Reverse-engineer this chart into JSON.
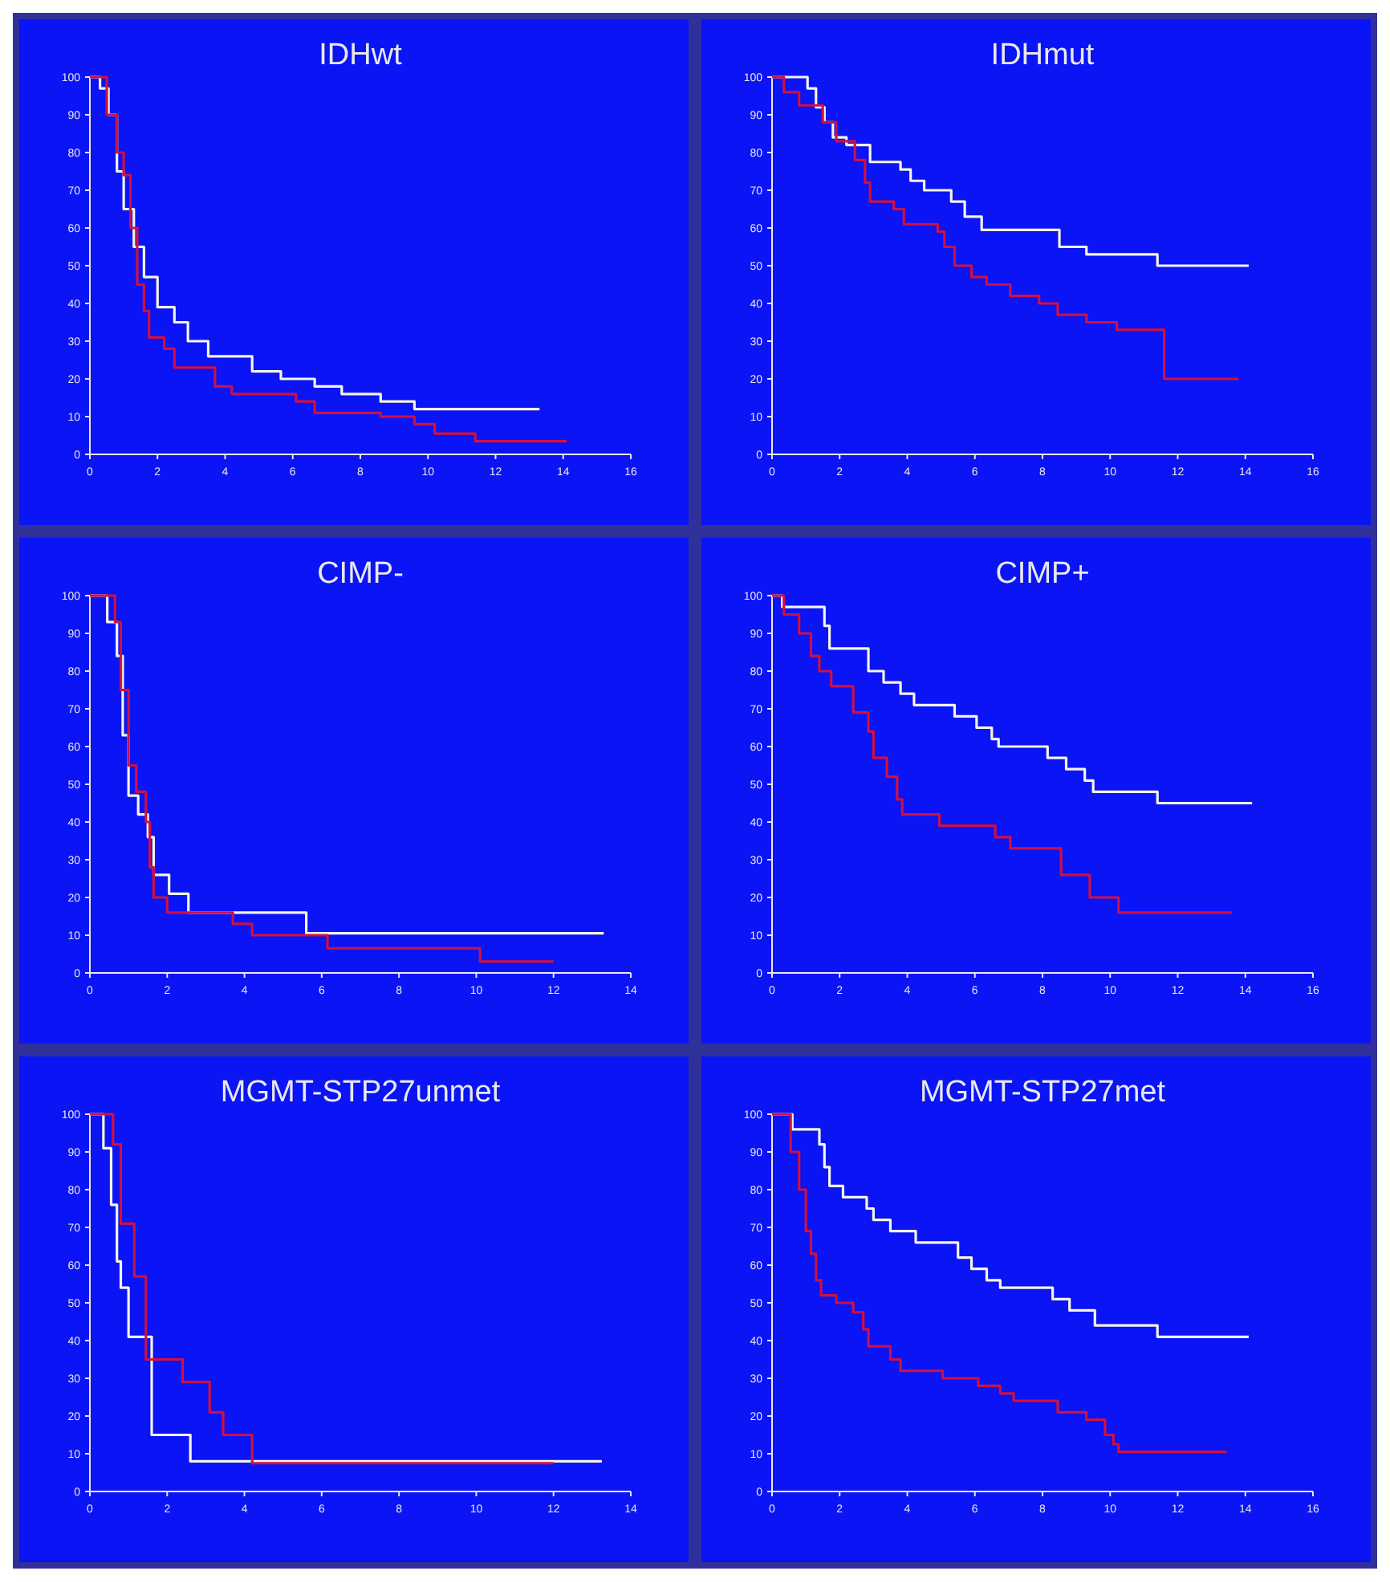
{
  "chart_data": [
    {
      "type": "step",
      "title": "IDHwt",
      "xlim": [
        0,
        16
      ],
      "xticks": [
        0,
        2,
        4,
        6,
        8,
        10,
        12,
        14,
        16
      ],
      "ylim": [
        0,
        100
      ],
      "yticks": [
        0,
        10,
        20,
        30,
        40,
        50,
        60,
        70,
        80,
        90,
        100
      ],
      "series": [
        {
          "color": "#f4f4e8",
          "x": [
            0,
            0.3,
            0.55,
            0.8,
            1.0,
            1.3,
            1.6,
            2.0,
            2.5,
            2.9,
            3.5,
            4.8,
            5.65,
            6.65,
            7.45,
            8.6,
            9.6,
            13.3
          ],
          "values": [
            100,
            97,
            90,
            75,
            65,
            55,
            47,
            39,
            35,
            30,
            26,
            22,
            20,
            18,
            16,
            14,
            12,
            12
          ]
        },
        {
          "color": "#d01040",
          "x": [
            0,
            0.5,
            0.8,
            1.0,
            1.2,
            1.4,
            1.6,
            1.75,
            2.2,
            2.5,
            3.7,
            4.2,
            6.1,
            6.65,
            8.6,
            9.6,
            10.2,
            11.4,
            14.1
          ],
          "values": [
            100,
            90,
            80,
            74,
            60,
            45,
            38,
            31,
            28,
            23,
            18,
            16,
            14,
            11,
            10,
            8,
            5.5,
            3.5,
            3.5
          ]
        }
      ]
    },
    {
      "type": "step",
      "title": "IDHmut",
      "xlim": [
        0,
        16
      ],
      "xticks": [
        0,
        2,
        4,
        6,
        8,
        10,
        12,
        14,
        16
      ],
      "ylim": [
        0,
        100
      ],
      "yticks": [
        0,
        10,
        20,
        30,
        40,
        50,
        60,
        70,
        80,
        90,
        100
      ],
      "series": [
        {
          "color": "#f4f4e8",
          "x": [
            0,
            1.05,
            1.3,
            1.55,
            1.8,
            2.2,
            2.9,
            3.8,
            4.1,
            4.5,
            5.3,
            5.7,
            6.2,
            8.5,
            9.3,
            11.4,
            14.1
          ],
          "values": [
            100,
            97,
            92,
            88,
            84,
            82,
            77.5,
            75.5,
            72.5,
            70,
            67,
            63,
            59.5,
            55,
            53,
            50,
            50
          ]
        },
        {
          "color": "#d01040",
          "x": [
            0,
            0.35,
            0.8,
            1.5,
            1.9,
            2.45,
            2.75,
            2.9,
            3.6,
            3.9,
            4.9,
            5.1,
            5.4,
            5.9,
            6.35,
            7.05,
            7.9,
            8.45,
            9.3,
            10.2,
            11.6,
            13.8
          ],
          "values": [
            100,
            96,
            92.5,
            88,
            83,
            78,
            72,
            67,
            65,
            61,
            59,
            55,
            50,
            47,
            45,
            42,
            40,
            37,
            35,
            33,
            20,
            20
          ]
        }
      ]
    },
    {
      "type": "step",
      "title": "CIMP-",
      "xlim": [
        0,
        14
      ],
      "xticks": [
        0,
        2,
        4,
        6,
        8,
        10,
        12,
        14
      ],
      "ylim": [
        0,
        100
      ],
      "yticks": [
        0,
        10,
        20,
        30,
        40,
        50,
        60,
        70,
        80,
        90,
        100
      ],
      "series": [
        {
          "color": "#f4f4e8",
          "x": [
            0,
            0.45,
            0.7,
            0.85,
            1.0,
            1.25,
            1.5,
            1.65,
            2.05,
            2.55,
            5.6,
            13.3
          ],
          "values": [
            100,
            93,
            84,
            63,
            47,
            42,
            36,
            26,
            21,
            16,
            10.5,
            10.5
          ]
        },
        {
          "color": "#d01040",
          "x": [
            0,
            0.15,
            0.65,
            0.8,
            1.0,
            1.2,
            1.45,
            1.55,
            1.65,
            2.0,
            3.7,
            4.2,
            6.15,
            10.1,
            12.0
          ],
          "values": [
            100,
            100,
            93,
            75,
            55,
            48,
            40,
            28,
            20,
            16,
            13,
            10,
            6.5,
            3,
            3
          ]
        }
      ]
    },
    {
      "type": "step",
      "title": "CIMP+",
      "xlim": [
        0,
        16
      ],
      "xticks": [
        0,
        2,
        4,
        6,
        8,
        10,
        12,
        14,
        16
      ],
      "ylim": [
        0,
        100
      ],
      "yticks": [
        0,
        10,
        20,
        30,
        40,
        50,
        60,
        70,
        80,
        90,
        100
      ],
      "series": [
        {
          "color": "#f4f4e8",
          "x": [
            0,
            0.3,
            1.55,
            1.7,
            2.85,
            3.3,
            3.8,
            4.2,
            5.4,
            6.05,
            6.5,
            6.7,
            8.15,
            8.7,
            9.25,
            9.5,
            11.4,
            14.2
          ],
          "values": [
            100,
            97,
            92,
            86,
            80,
            77,
            74,
            71,
            68,
            65,
            62,
            60,
            57,
            54,
            51,
            48,
            45,
            45
          ]
        },
        {
          "color": "#d01040",
          "x": [
            0,
            0.35,
            0.8,
            1.15,
            1.4,
            1.75,
            2.4,
            2.85,
            3.0,
            3.4,
            3.7,
            3.85,
            4.95,
            6.6,
            7.05,
            8.55,
            9.4,
            10.25,
            13.6
          ],
          "values": [
            100,
            95,
            90,
            84,
            80,
            76,
            69,
            64,
            57,
            52,
            46,
            42,
            39,
            36,
            33,
            26,
            20,
            16,
            16
          ]
        }
      ]
    },
    {
      "type": "step",
      "title": "MGMT-STP27unmet",
      "xlim": [
        0,
        14
      ],
      "xticks": [
        0,
        2,
        4,
        6,
        8,
        10,
        12,
        14
      ],
      "ylim": [
        0,
        100
      ],
      "yticks": [
        0,
        10,
        20,
        30,
        40,
        50,
        60,
        70,
        80,
        90,
        100
      ],
      "series": [
        {
          "color": "#f4f4e8",
          "x": [
            0,
            0.35,
            0.55,
            0.7,
            0.8,
            1.0,
            1.6,
            2.6,
            13.25
          ],
          "values": [
            100,
            91,
            76,
            61,
            54,
            41,
            15,
            8,
            8
          ]
        },
        {
          "color": "#d01040",
          "x": [
            0,
            0.6,
            0.8,
            1.15,
            1.45,
            2.4,
            3.1,
            3.45,
            4.2,
            12.0
          ],
          "values": [
            100,
            92,
            71,
            57,
            35,
            29,
            21,
            15,
            7.5,
            7.5
          ]
        }
      ]
    },
    {
      "type": "step",
      "title": "MGMT-STP27met",
      "xlim": [
        0,
        16
      ],
      "xticks": [
        0,
        2,
        4,
        6,
        8,
        10,
        12,
        14,
        16
      ],
      "ylim": [
        0,
        100
      ],
      "yticks": [
        0,
        10,
        20,
        30,
        40,
        50,
        60,
        70,
        80,
        90,
        100
      ],
      "series": [
        {
          "color": "#f4f4e8",
          "x": [
            0,
            0.6,
            1.4,
            1.55,
            1.7,
            2.1,
            2.8,
            3.0,
            3.5,
            4.25,
            5.5,
            5.9,
            6.35,
            6.75,
            8.3,
            8.8,
            9.55,
            11.4,
            14.1
          ],
          "values": [
            100,
            96,
            92,
            86,
            81,
            78,
            75,
            72,
            69,
            66,
            62,
            59,
            56,
            54,
            51,
            48,
            44,
            41,
            41
          ]
        },
        {
          "color": "#d01040",
          "x": [
            0,
            0.25,
            0.55,
            0.8,
            1.0,
            1.15,
            1.3,
            1.45,
            1.9,
            2.4,
            2.7,
            2.85,
            3.5,
            3.8,
            5.05,
            6.1,
            6.75,
            7.15,
            8.45,
            9.3,
            9.85,
            10.1,
            10.25,
            13.45
          ],
          "values": [
            100,
            100,
            90,
            80,
            69,
            63,
            56,
            52,
            50,
            47.5,
            43,
            38.5,
            35,
            32,
            30,
            28,
            26,
            24,
            21,
            19,
            15,
            12.5,
            10.5,
            10.5
          ]
        }
      ]
    }
  ]
}
